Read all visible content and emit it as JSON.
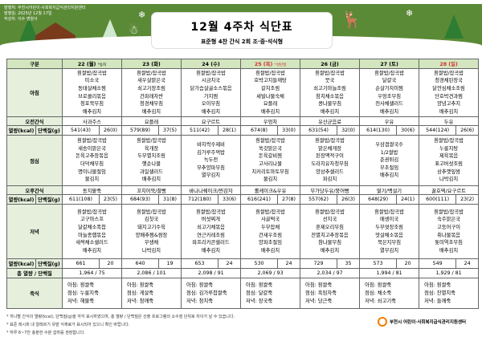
{
  "header": {
    "publisher": "발행처: 부천시어린이·사회복지급식관리지원센터",
    "date": "발행일: 2025년 12월 17일",
    "author": "작성자: 이수 영양사",
    "title": "12월 4주차 식단표",
    "subtitle": "표준형 4찬 간식 2회 조·중·석식형"
  },
  "colors": {
    "banner": "#5b8a36",
    "header_bg": "#d3e6bf",
    "label_bg": "#e6efdc",
    "holiday": "#d32f2f"
  },
  "table": {
    "corner": "구분",
    "days": [
      {
        "label": "22 (월)",
        "note": "*동지",
        "holiday": false
      },
      {
        "label": "23 (화)",
        "note": "",
        "holiday": false
      },
      {
        "label": "24 (수)",
        "note": "",
        "holiday": false
      },
      {
        "label": "25 (목)",
        "note": "*성탄절",
        "holiday": true
      },
      {
        "label": "26 (금)",
        "note": "",
        "holiday": false
      },
      {
        "label": "27 (토)",
        "note": "",
        "holiday": false
      },
      {
        "label": "28 (일)",
        "note": "",
        "holiday": true
      }
    ],
    "row_labels": {
      "breakfast": "아침",
      "am_snack": "오전간식",
      "kcal": "열량(kcal)",
      "protein": "단백질(g)",
      "lunch": "점심",
      "pm_snack": "오후간식",
      "dinner": "저녁",
      "total": "총 열량 / 단백질",
      "porridge": "죽식"
    },
    "breakfast": [
      [
        "흰쌀밥/잡곡밥",
        "미소국",
        "동태살채소찜",
        "브로콜리볶음",
        "청포묵무침",
        "배추김치"
      ],
      [
        "흰쌀밥/잡곡밥",
        "새우살맑은국",
        "쇠고기장조림",
        "건파래자반",
        "청경채무침",
        "배추김치"
      ],
      [
        "흰쌀밥/잡곡밥",
        "시금치국",
        "닭가슴살굴소스볶음",
        "가지찜",
        "오이무침",
        "배추김치"
      ],
      [
        "흰쌀밥/잡곡밥",
        "호박고지들깨탕",
        "갈치조림",
        "세발나물숙채",
        "요플레",
        "배추김치"
      ],
      [
        "흰쌀밥/잡곡밥",
        "뭇국",
        "쇠고기마늘조림",
        "참치채소볶음",
        "콩나물무침",
        "배추김치"
      ],
      [
        "흰쌀밥/잡곡밥",
        "달걀국",
        "순살가자미찜",
        "우엉조무침",
        "천사채샐러드",
        "배추김치"
      ],
      [
        "흰쌀밥/잡곡밥",
        "청경채된장국",
        "닭안심채소조림",
        "단호박견과찜",
        "양념고추지",
        "배추김치"
      ]
    ],
    "am_snack": [
      "사과주스",
      "요플레",
      "요구르트",
      "우엉차",
      "유산균음료",
      "우유",
      "두유"
    ],
    "am_nutrition": [
      [
        "541(43)",
        "26(0)"
      ],
      [
        "579(89)",
        "37(5)"
      ],
      [
        "511(42)",
        "28(1)"
      ],
      [
        "674(8)",
        "33(0)"
      ],
      [
        "631(54)",
        "32(0)"
      ],
      [
        "614(130)",
        "30(6)"
      ],
      [
        "544(124)",
        "26(6)"
      ]
    ],
    "lunch": [
      [
        "흰쌀밥/잡곡밥",
        "새송이맑은국",
        "돈육고추장볶음",
        "더덕채무침",
        "명이나물절임",
        "물김치"
      ],
      [
        "흰쌀밥/잡곡밥",
        "육개장",
        "두부멸치조림",
        "햇순나물",
        "과일샐러드",
        "배추김치"
      ],
      [
        "바지락수제비",
        "김가루주먹밥",
        "녹두전",
        "부추양파무침",
        "열무김치"
      ],
      [
        "흰쌀밥/잡곡밥",
        "쑥갓맑은국",
        "돈육갈비찜",
        "고사리나물",
        "치커리토마토무침",
        "물김치"
      ],
      [
        "흰쌀밥/잡곡밥",
        "맑은채개장",
        "된장맥적구이",
        "도라지유자청무침",
        "양상추샐러드",
        "파김치"
      ],
      [
        "우삼겹쌀국수",
        "1/2쌀밥",
        "춘권튀김",
        "무초절임",
        "배추김치"
      ],
      [
        "흰쌀밥/잡곡밥",
        "누룽지탕",
        "제육볶음",
        "표고버섯조림",
        "상추깻잎쌈",
        "나박김치"
      ]
    ],
    "pm_snack": [
      "동지팥죽",
      "꼬치어묵/찰빵",
      "바나나쉐이크/찐감자",
      "롤케이크&우유",
      "무가당두유/붕어빵",
      "딸기/백설기",
      "꿀호떡/요구르트"
    ],
    "pm_nutrition": [
      [
        "611(108)",
        "23(5)"
      ],
      [
        "684(93)",
        "31(8)"
      ],
      [
        "712(180)",
        "33(6)"
      ],
      [
        "616(241)",
        "27(8)"
      ],
      [
        "557(62)",
        "26(3)"
      ],
      [
        "648(29)",
        "24(1)"
      ],
      [
        "600(111)",
        "23(2)"
      ]
    ],
    "dinner": [
      [
        "흰쌀밥/잡곡밥",
        "고구마스프",
        "달걀채소폭찹",
        "마늘종햄볶음",
        "새싹채소샐러드",
        "배추김치"
      ],
      [
        "흰쌀밥/잡곡밥",
        "김칫국",
        "돼지고기수육",
        "양배추찜&쌈장",
        "무생채",
        "나박김치"
      ],
      [
        "흰쌀밥/잡곡밥",
        "버섯찌개",
        "쇠고기채볶음",
        "연근카레조림",
        "파프리카콘샐러드",
        "배추김치"
      ],
      [
        "흰쌀밥/잡곡밥",
        "사골떡국",
        "두부잡채",
        "건새우조림",
        "양파초절임",
        "배추김치"
      ],
      [
        "흰쌀밥/잡곡밥",
        "선지국",
        "훈제오리무침",
        "잔멸치고추장볶음",
        "참나물무침",
        "배추김치"
      ],
      [
        "흰쌀밥/잡곡밥",
        "매생이국",
        "두부엿장조림",
        "맛살채소볶음",
        "묵은지무침",
        "열무김치"
      ],
      [
        "흰쌀밥/잡곡밥",
        "숙주맑은국",
        "고등어구이",
        "취나물볶음",
        "톳미역초무침",
        "배추김치"
      ]
    ],
    "dinner_nutrition": [
      [
        "661",
        "20"
      ],
      [
        "640",
        "19"
      ],
      [
        "653",
        "24"
      ],
      [
        "530",
        "24"
      ],
      [
        "729",
        "35"
      ],
      [
        "573",
        "20"
      ],
      [
        "549",
        "24"
      ]
    ],
    "totals": [
      "1,964  /  75",
      "2,086  /  101",
      "2,098  /  91",
      "2,069  /  93",
      "2,034  /  97",
      "1,994  /  81",
      "1,929  /  81"
    ],
    "porridge": [
      [
        "아침: 흰쌀죽",
        "점심: 누룽지죽",
        "저녁: 해물죽"
      ],
      [
        "아침: 흰쌀죽",
        "점심: 게살죽",
        "저녁: 참깨죽"
      ],
      [
        "아침: 흰쌀죽",
        "점심: 김가루찹쌀죽",
        "저녁: 참치죽"
      ],
      [
        "아침: 흰쌀죽",
        "점심: 달걀죽",
        "저녁: 장국죽"
      ],
      [
        "아침: 흰쌀죽",
        "점심: 흑임자죽",
        "저녁: 당근죽"
      ],
      [
        "아침: 흰쌀죽",
        "점심: 채소죽",
        "저녁: 쇠고기죽"
      ],
      [
        "아침: 흰쌀죽",
        "점심: 잔멸치죽",
        "저녁: 들깨죽"
      ]
    ]
  },
  "footnotes": [
    "* 끼니별 간식의 열량(kcal), 단백질(g)을 각각 표시하였으며, 총 열량 / 단백질은 산출 프로그램의 소수점 단위로 차이가 날 수 있습니다.",
    "* 표준 레시피 내 알레르기 유발 식재료가 표시되어 있으니 확인 바랍니다.",
    "* 하루 6~7잔 충분한 수분 섭취를 권장합니다."
  ],
  "logo": {
    "text": "부천시 어린이·사회복지급식관리지원센터"
  }
}
